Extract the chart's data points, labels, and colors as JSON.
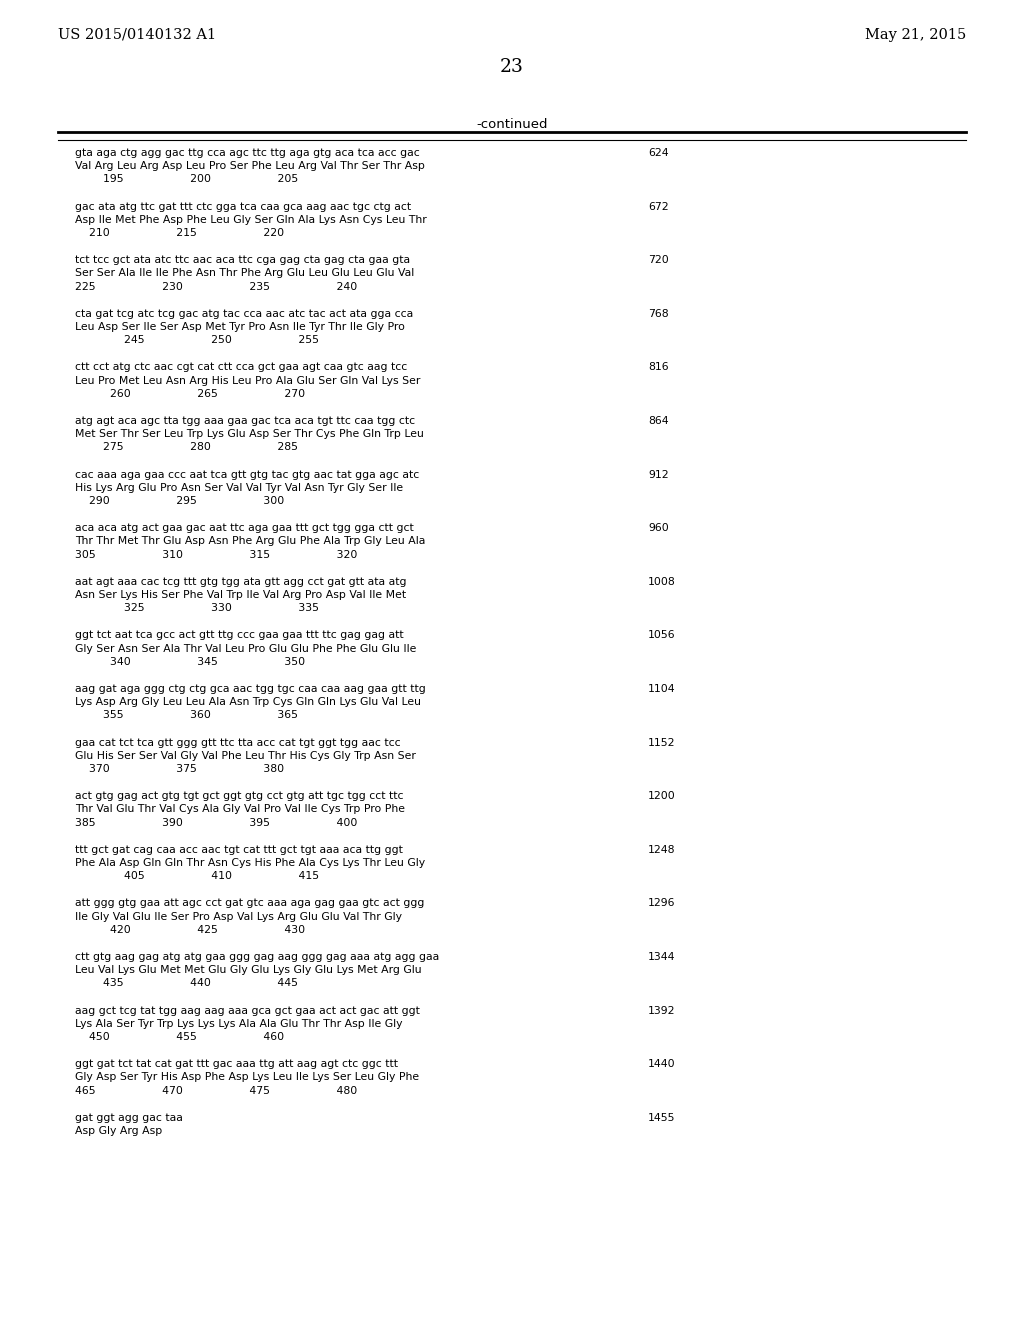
{
  "header_left": "US 2015/0140132 A1",
  "header_right": "May 21, 2015",
  "page_number": "23",
  "continued_label": "-continued",
  "background_color": "#ffffff",
  "text_color": "#000000",
  "sequences": [
    {
      "nucleotide": "gta aga ctg agg gac ttg cca agc ttc ttg aga gtg aca tca acc gac",
      "amino": "Val Arg Leu Arg Asp Leu Pro Ser Phe Leu Arg Val Thr Ser Thr Asp",
      "positions": "        195                   200                   205",
      "number": "624"
    },
    {
      "nucleotide": "gac ata atg ttc gat ttt ctc gga tca caa gca aag aac tgc ctg act",
      "amino": "Asp Ile Met Phe Asp Phe Leu Gly Ser Gln Ala Lys Asn Cys Leu Thr",
      "positions": "    210                   215                   220",
      "number": "672"
    },
    {
      "nucleotide": "tct tcc gct ata atc ttc aac aca ttc cga gag cta gag cta gaa gta",
      "amino": "Ser Ser Ala Ile Ile Phe Asn Thr Phe Arg Glu Leu Glu Leu Glu Val",
      "positions": "225                   230                   235                   240",
      "number": "720"
    },
    {
      "nucleotide": "cta gat tcg atc tcg gac atg tac cca aac atc tac act ata gga cca",
      "amino": "Leu Asp Ser Ile Ser Asp Met Tyr Pro Asn Ile Tyr Thr Ile Gly Pro",
      "positions": "              245                   250                   255",
      "number": "768"
    },
    {
      "nucleotide": "ctt cct atg ctc aac cgt cat ctt cca gct gaa agt caa gtc aag tcc",
      "amino": "Leu Pro Met Leu Asn Arg His Leu Pro Ala Glu Ser Gln Val Lys Ser",
      "positions": "          260                   265                   270",
      "number": "816"
    },
    {
      "nucleotide": "atg agt aca agc tta tgg aaa gaa gac tca aca tgt ttc caa tgg ctc",
      "amino": "Met Ser Thr Ser Leu Trp Lys Glu Asp Ser Thr Cys Phe Gln Trp Leu",
      "positions": "        275                   280                   285",
      "number": "864"
    },
    {
      "nucleotide": "cac aaa aga gaa ccc aat tca gtt gtg tac gtg aac tat gga agc atc",
      "amino": "His Lys Arg Glu Pro Asn Ser Val Val Tyr Val Asn Tyr Gly Ser Ile",
      "positions": "    290                   295                   300",
      "number": "912"
    },
    {
      "nucleotide": "aca aca atg act gaa gac aat ttc aga gaa ttt gct tgg gga ctt gct",
      "amino": "Thr Thr Met Thr Glu Asp Asn Phe Arg Glu Phe Ala Trp Gly Leu Ala",
      "positions": "305                   310                   315                   320",
      "number": "960"
    },
    {
      "nucleotide": "aat agt aaa cac tcg ttt gtg tgg ata gtt agg cct gat gtt ata atg",
      "amino": "Asn Ser Lys His Ser Phe Val Trp Ile Val Arg Pro Asp Val Ile Met",
      "positions": "              325                   330                   335",
      "number": "1008"
    },
    {
      "nucleotide": "ggt tct aat tca gcc act gtt ttg ccc gaa gaa ttt ttc gag gag att",
      "amino": "Gly Ser Asn Ser Ala Thr Val Leu Pro Glu Glu Phe Phe Glu Glu Ile",
      "positions": "          340                   345                   350",
      "number": "1056"
    },
    {
      "nucleotide": "aag gat aga ggg ctg ctg gca aac tgg tgc caa caa aag gaa gtt ttg",
      "amino": "Lys Asp Arg Gly Leu Leu Ala Asn Trp Cys Gln Gln Lys Glu Val Leu",
      "positions": "        355                   360                   365",
      "number": "1104"
    },
    {
      "nucleotide": "gaa cat tct tca gtt ggg gtt ttc tta acc cat tgt ggt tgg aac tcc",
      "amino": "Glu His Ser Ser Val Gly Val Phe Leu Thr His Cys Gly Trp Asn Ser",
      "positions": "    370                   375                   380",
      "number": "1152"
    },
    {
      "nucleotide": "act gtg gag act gtg tgt gct ggt gtg cct gtg att tgc tgg cct ttc",
      "amino": "Thr Val Glu Thr Val Cys Ala Gly Val Pro Val Ile Cys Trp Pro Phe",
      "positions": "385                   390                   395                   400",
      "number": "1200"
    },
    {
      "nucleotide": "ttt gct gat cag caa acc aac tgt cat ttt gct tgt aaa aca ttg ggt",
      "amino": "Phe Ala Asp Gln Gln Thr Asn Cys His Phe Ala Cys Lys Thr Leu Gly",
      "positions": "              405                   410                   415",
      "number": "1248"
    },
    {
      "nucleotide": "att ggg gtg gaa att agc cct gat gtc aaa aga gag gaa gtc act ggg",
      "amino": "Ile Gly Val Glu Ile Ser Pro Asp Val Lys Arg Glu Glu Val Thr Gly",
      "positions": "          420                   425                   430",
      "number": "1296"
    },
    {
      "nucleotide": "ctt gtg aag gag atg atg gaa ggg gag aag ggg gag aaa atg agg gaa",
      "amino": "Leu Val Lys Glu Met Met Glu Gly Glu Lys Gly Glu Lys Met Arg Glu",
      "positions": "        435                   440                   445",
      "number": "1344"
    },
    {
      "nucleotide": "aag gct tcg tat tgg aag aag aaa gca gct gaa act act gac att ggt",
      "amino": "Lys Ala Ser Tyr Trp Lys Lys Lys Ala Ala Glu Thr Thr Asp Ile Gly",
      "positions": "    450                   455                   460",
      "number": "1392"
    },
    {
      "nucleotide": "ggt gat tct tat cat gat ttt gac aaa ttg att aag agt ctc ggc ttt",
      "amino": "Gly Asp Ser Tyr His Asp Phe Asp Lys Leu Ile Lys Ser Leu Gly Phe",
      "positions": "465                   470                   475                   480",
      "number": "1440"
    },
    {
      "nucleotide": "gat ggt agg gac taa",
      "amino": "Asp Gly Arg Asp",
      "positions": "",
      "number": "1455"
    }
  ]
}
